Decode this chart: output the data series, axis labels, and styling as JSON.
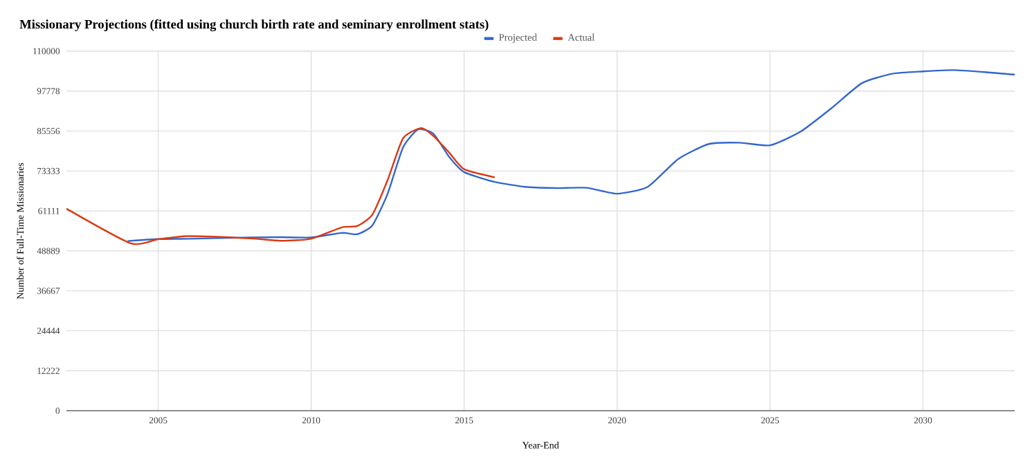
{
  "chart_data": {
    "type": "line",
    "title": "Missionary Projections (fitted using church birth rate and seminary enrollment stats)",
    "xlabel": "Year-End",
    "ylabel": "Number of Full-Time Missionaries",
    "xlim": [
      2002,
      2033
    ],
    "xticks": [
      2005,
      2010,
      2015,
      2020,
      2025,
      2030
    ],
    "ylim": [
      0,
      110000
    ],
    "yticks": [
      0,
      12222,
      24444,
      36667,
      48889,
      61111,
      73333,
      85556,
      97778,
      110000
    ],
    "grid": true,
    "legend": "top",
    "marker": "none",
    "line_style": "solid",
    "series": [
      {
        "name": "Projected",
        "color": "#3366cc",
        "x": [
          2004,
          2005,
          2006,
          2008,
          2009,
          2010,
          2011,
          2011.5,
          2012,
          2012.5,
          2013,
          2013.5,
          2014,
          2014.5,
          2015,
          2016,
          2017,
          2018,
          2019,
          2020,
          2021,
          2022,
          2023,
          2024,
          2025,
          2026,
          2027,
          2028,
          2029,
          2030,
          2031,
          2032,
          2033
        ],
        "values": [
          51900,
          52500,
          52600,
          53000,
          53100,
          53000,
          54400,
          54000,
          56700,
          66400,
          80500,
          86100,
          84700,
          77800,
          73000,
          70000,
          68500,
          68100,
          68200,
          66400,
          68500,
          77000,
          81600,
          82000,
          81200,
          85400,
          92500,
          100200,
          103100,
          103800,
          104200,
          103600,
          102800
        ]
      },
      {
        "name": "Actual",
        "color": "#dc3912",
        "x": [
          2002,
          2004.1,
          2005,
          2006,
          2008,
          2009,
          2010,
          2011,
          2011.5,
          2012,
          2012.5,
          2013,
          2013.6,
          2014,
          2014.5,
          2015,
          2016
        ],
        "values": [
          61800,
          51200,
          52450,
          53400,
          52700,
          52000,
          52600,
          56100,
          56500,
          60000,
          70600,
          83300,
          86500,
          84000,
          79100,
          73900,
          71400
        ]
      }
    ]
  }
}
